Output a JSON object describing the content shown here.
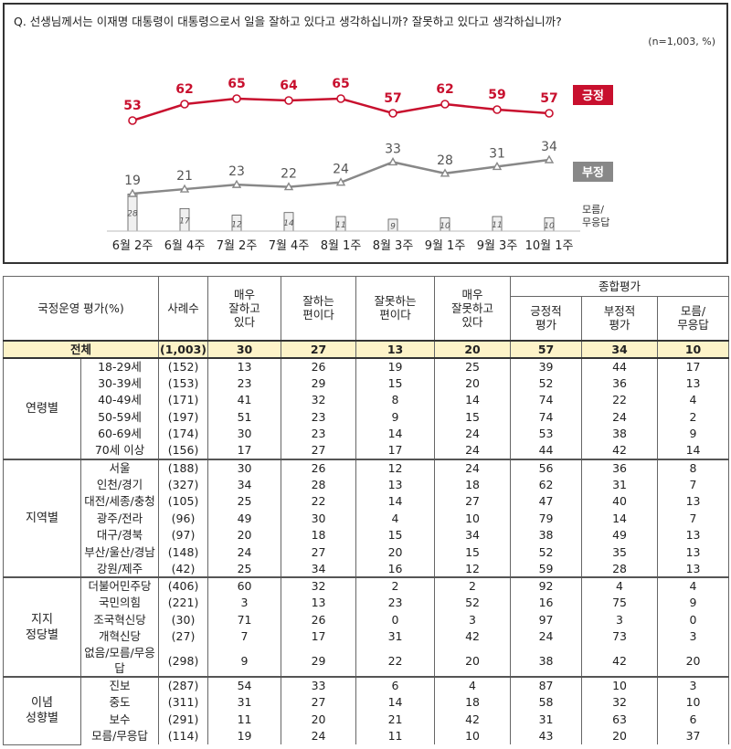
{
  "question": "Q. 선생님께서는 이재명 대통령이 대통령으로서 일을 잘하고 있다고 생각하십니까? 잘못하고 있다고 생각하십니까?",
  "sample_note": "(n=1,003,  %)",
  "colors": {
    "positive": "#c8102e",
    "negative": "#888888",
    "unknown_bar": "#f0f0f0",
    "total_bg": "#fdf3c8"
  },
  "chart_data": {
    "type": "line",
    "categories": [
      "6월 2주",
      "6월 4주",
      "7월 2주",
      "7월 4주",
      "8월 1주",
      "8월 3주",
      "9월 1주",
      "9월 3주",
      "10월 1주"
    ],
    "series": [
      {
        "name": "긍정",
        "values": [
          53,
          62,
          65,
          64,
          65,
          57,
          62,
          59,
          57
        ]
      },
      {
        "name": "부정",
        "values": [
          19,
          21,
          23,
          22,
          24,
          33,
          28,
          31,
          34
        ]
      },
      {
        "name": "모름/무응답",
        "type": "bar",
        "values": [
          28,
          17,
          12,
          14,
          11,
          9,
          10,
          11,
          10
        ]
      }
    ],
    "legend": {
      "positive": "긍정",
      "negative": "부정",
      "unknown": "모름/\n무응답"
    },
    "ylim": [
      0,
      70
    ]
  },
  "table": {
    "headers": {
      "rating": "국정운영 평가(%)",
      "cases": "사례수",
      "very_good": "매우\n잘하고\n있다",
      "good": "잘하는\n편이다",
      "bad": "잘못하는\n편이다",
      "very_bad": "매우\n잘못하고\n있다",
      "overall": "종합평가",
      "positive": "긍정적\n평가",
      "negative": "부정적\n평가",
      "unknown": "모름/\n무응답"
    },
    "total": {
      "label": "전체",
      "values": [
        "(1,003)",
        "30",
        "27",
        "13",
        "20",
        "57",
        "34",
        "10"
      ]
    },
    "groups": [
      {
        "name": "연령별",
        "rows": [
          {
            "label": "18-29세",
            "values": [
              "(152)",
              "13",
              "26",
              "19",
              "25",
              "39",
              "44",
              "17"
            ]
          },
          {
            "label": "30-39세",
            "values": [
              "(153)",
              "23",
              "29",
              "15",
              "20",
              "52",
              "36",
              "13"
            ]
          },
          {
            "label": "40-49세",
            "values": [
              "(171)",
              "41",
              "32",
              "8",
              "14",
              "74",
              "22",
              "4"
            ]
          },
          {
            "label": "50-59세",
            "values": [
              "(197)",
              "51",
              "23",
              "9",
              "15",
              "74",
              "24",
              "2"
            ]
          },
          {
            "label": "60-69세",
            "values": [
              "(174)",
              "30",
              "23",
              "14",
              "24",
              "53",
              "38",
              "9"
            ]
          },
          {
            "label": "70세 이상",
            "values": [
              "(156)",
              "17",
              "27",
              "17",
              "24",
              "44",
              "42",
              "14"
            ]
          }
        ]
      },
      {
        "name": "지역별",
        "rows": [
          {
            "label": "서울",
            "values": [
              "(188)",
              "30",
              "26",
              "12",
              "24",
              "56",
              "36",
              "8"
            ]
          },
          {
            "label": "인천/경기",
            "values": [
              "(327)",
              "34",
              "28",
              "13",
              "18",
              "62",
              "31",
              "7"
            ]
          },
          {
            "label": "대전/세종/충청",
            "values": [
              "(105)",
              "25",
              "22",
              "14",
              "27",
              "47",
              "40",
              "13"
            ]
          },
          {
            "label": "광주/전라",
            "values": [
              "(96)",
              "49",
              "30",
              "4",
              "10",
              "79",
              "14",
              "7"
            ]
          },
          {
            "label": "대구/경북",
            "values": [
              "(97)",
              "20",
              "18",
              "15",
              "34",
              "38",
              "49",
              "13"
            ]
          },
          {
            "label": "부산/울산/경남",
            "values": [
              "(148)",
              "24",
              "27",
              "20",
              "15",
              "52",
              "35",
              "13"
            ]
          },
          {
            "label": "강원/제주",
            "values": [
              "(42)",
              "25",
              "34",
              "16",
              "12",
              "59",
              "28",
              "13"
            ]
          }
        ]
      },
      {
        "name": "지지\n정당별",
        "rows": [
          {
            "label": "더불어민주당",
            "values": [
              "(406)",
              "60",
              "32",
              "2",
              "2",
              "92",
              "4",
              "4"
            ]
          },
          {
            "label": "국민의힘",
            "values": [
              "(221)",
              "3",
              "13",
              "23",
              "52",
              "16",
              "75",
              "9"
            ]
          },
          {
            "label": "조국혁신당",
            "values": [
              "(30)",
              "71",
              "26",
              "0",
              "3",
              "97",
              "3",
              "0"
            ]
          },
          {
            "label": "개혁신당",
            "values": [
              "(27)",
              "7",
              "17",
              "31",
              "42",
              "24",
              "73",
              "3"
            ]
          },
          {
            "label": "없음/모름/무응답",
            "values": [
              "(298)",
              "9",
              "29",
              "22",
              "20",
              "38",
              "42",
              "20"
            ]
          }
        ]
      },
      {
        "name": "이념\n성향별",
        "rows": [
          {
            "label": "진보",
            "values": [
              "(287)",
              "54",
              "33",
              "6",
              "4",
              "87",
              "10",
              "3"
            ]
          },
          {
            "label": "중도",
            "values": [
              "(311)",
              "31",
              "27",
              "14",
              "18",
              "58",
              "32",
              "10"
            ]
          },
          {
            "label": "보수",
            "values": [
              "(291)",
              "11",
              "20",
              "21",
              "42",
              "31",
              "63",
              "6"
            ]
          },
          {
            "label": "모름/무응답",
            "values": [
              "(114)",
              "19",
              "24",
              "11",
              "10",
              "43",
              "20",
              "37"
            ]
          }
        ]
      }
    ]
  }
}
